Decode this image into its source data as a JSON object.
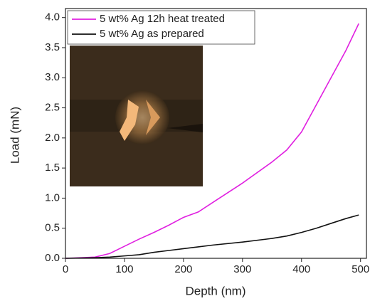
{
  "chart_data": {
    "type": "line",
    "x_label": "Depth (nm)",
    "y_label": "Load (mN)",
    "x": [
      0,
      50,
      75,
      100,
      125,
      150,
      175,
      200,
      225,
      250,
      300,
      350,
      375,
      400,
      425,
      450,
      475,
      497
    ],
    "series": [
      {
        "name": "5 wt% Ag 12h heat treated",
        "color": "#e020e0",
        "values": [
          0,
          0.02,
          0.08,
          0.2,
          0.32,
          0.43,
          0.55,
          0.68,
          0.77,
          0.93,
          1.25,
          1.6,
          1.8,
          2.1,
          2.55,
          3.0,
          3.45,
          3.9
        ]
      },
      {
        "name": "5 wt% Ag as prepared",
        "color": "#111111",
        "values": [
          0,
          0.01,
          0.02,
          0.04,
          0.06,
          0.1,
          0.13,
          0.16,
          0.19,
          0.22,
          0.27,
          0.33,
          0.37,
          0.43,
          0.5,
          0.58,
          0.66,
          0.72
        ]
      }
    ],
    "xlim": [
      0,
      510
    ],
    "ylim": [
      0,
      4.15
    ],
    "xticks": [
      0,
      100,
      200,
      300,
      400,
      500
    ],
    "yticks": [
      {
        "value": 0,
        "label": "0.0"
      },
      {
        "value": 0.5,
        "label": "0.5"
      },
      {
        "value": 1,
        "label": "1.0"
      },
      {
        "value": 1.5,
        "label": "1.5"
      },
      {
        "value": 2,
        "label": "2.0"
      },
      {
        "value": 2.5,
        "label": "2.5"
      },
      {
        "value": 3,
        "label": "3.0"
      },
      {
        "value": 3.5,
        "label": "3.5"
      },
      {
        "value": 4,
        "label": "4.0"
      }
    ],
    "legend": "upper left"
  }
}
